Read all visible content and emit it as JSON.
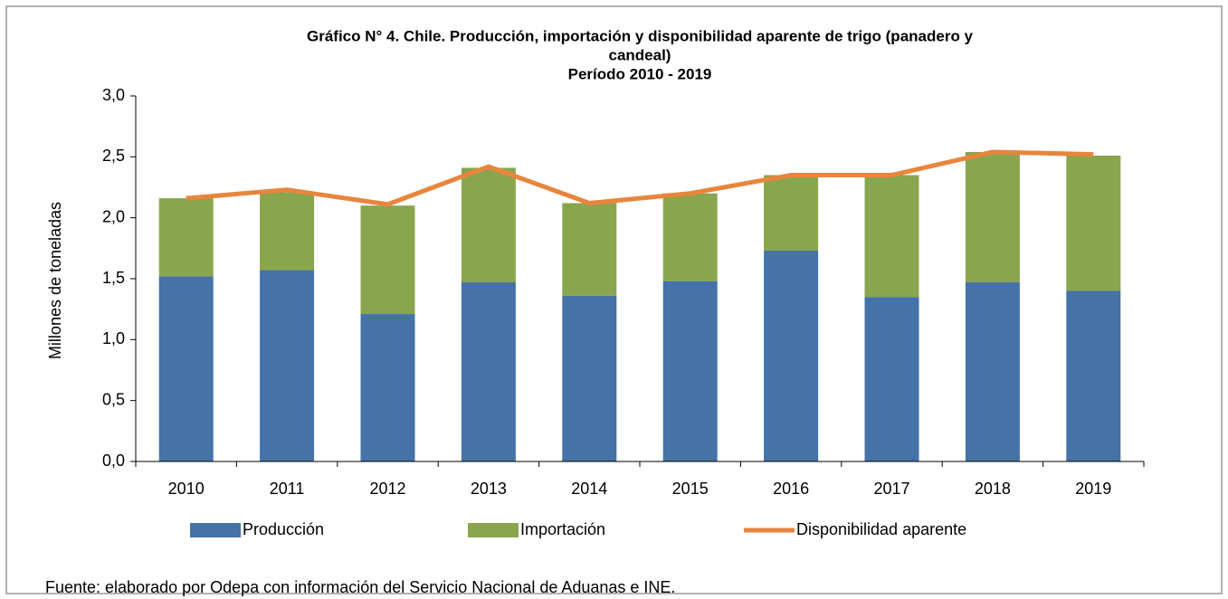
{
  "chart_data": {
    "type": "stacked-bar-line",
    "title": [
      "Gráfico N° 4. Chile. Producción, importación y disponibilidad aparente de trigo (panadero y",
      "candeal)",
      "Período 2010 - 2019"
    ],
    "y_label": "Millones de toneladas",
    "source": "Fuente: elaborado por Odepa con información del Servicio Nacional de Aduanas e INE.",
    "categories": [
      "2010",
      "2011",
      "2012",
      "2013",
      "2014",
      "2015",
      "2016",
      "2017",
      "2018",
      "2019"
    ],
    "series": [
      {
        "name": "Producción",
        "color": "#4572a7",
        "kind": "bar",
        "values": [
          1.52,
          1.57,
          1.21,
          1.47,
          1.36,
          1.48,
          1.73,
          1.35,
          1.47,
          1.4
        ]
      },
      {
        "name": "Importación",
        "color": "#89a54e",
        "kind": "bar",
        "values": [
          0.64,
          0.64,
          0.89,
          0.94,
          0.76,
          0.72,
          0.62,
          1.0,
          1.07,
          1.11
        ]
      },
      {
        "name": "Disponibilidad aparente",
        "color": "#e8853d",
        "kind": "line",
        "values": [
          2.16,
          2.23,
          2.11,
          2.42,
          2.12,
          2.2,
          2.35,
          2.35,
          2.54,
          2.52
        ]
      }
    ],
    "ylim": [
      0,
      3
    ],
    "yticks": [
      {
        "value": 0,
        "label": "0,0"
      },
      {
        "value": 0.5,
        "label": "0,5"
      },
      {
        "value": 1,
        "label": "1,0"
      },
      {
        "value": 1.5,
        "label": "1,5"
      },
      {
        "value": 2,
        "label": "2,0"
      },
      {
        "value": 2.5,
        "label": "2,5"
      },
      {
        "value": 3,
        "label": "3,0"
      }
    ],
    "grid": false,
    "legend": "bottom"
  }
}
